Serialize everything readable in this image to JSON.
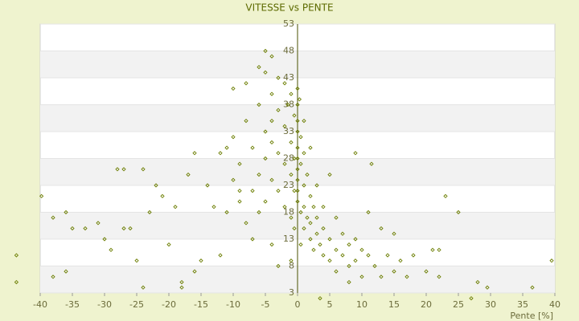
{
  "chart_data": {
    "type": "scatter",
    "title": "VITESSE vs PENTE",
    "x_label": "Pente [%]",
    "color": "#6b7d00",
    "xlim": [
      -40,
      40
    ],
    "xticks": [
      -40,
      -35,
      -30,
      -25,
      -20,
      -15,
      -10,
      -5,
      0,
      5,
      10,
      15,
      20,
      25,
      30,
      35,
      40
    ],
    "ylim": [
      3,
      53
    ],
    "yticks": [
      3,
      8,
      13,
      18,
      23,
      28,
      33,
      38,
      43,
      48,
      53
    ],
    "x": [
      -43.7,
      -43.7,
      -39.8,
      -38,
      -38,
      -36,
      -36,
      -35,
      -33,
      -31,
      -30,
      -29,
      -28,
      -27,
      -27,
      -26,
      -25,
      -24,
      -24,
      -23,
      -22,
      -21,
      -20,
      -19,
      -18,
      -18,
      -17,
      -16,
      -16,
      -15,
      -14,
      -13,
      -12,
      -12,
      -11,
      -11,
      -10,
      -10,
      -10,
      -9,
      -9,
      -9,
      -8,
      -8,
      -8,
      -7,
      -7,
      -7,
      -6,
      -6,
      -6,
      -6,
      -5,
      -5,
      -5,
      -5,
      -5,
      -4,
      -4,
      -4,
      -4,
      -4,
      -4,
      -3,
      -3,
      -3,
      -3,
      -3,
      -2,
      -2,
      -2,
      -2,
      -1.5,
      -1,
      -1,
      -1,
      -1,
      -1,
      -0.5,
      -0.5,
      -0.5,
      -0.5,
      0,
      0,
      0,
      0,
      0,
      0,
      0,
      0,
      0,
      0,
      0.3,
      0.5,
      0.5,
      0.5,
      0.5,
      1,
      1,
      1,
      1,
      1,
      1.5,
      1.5,
      2,
      2,
      2,
      2,
      2.5,
      2.5,
      3,
      3,
      3,
      3.5,
      3.5,
      4,
      4,
      4,
      5,
      5,
      5,
      6,
      6,
      6,
      7,
      7,
      8,
      8,
      8,
      9,
      9,
      9,
      10,
      10,
      11,
      11,
      11.5,
      12,
      13,
      13,
      14,
      15,
      15,
      16,
      17,
      18,
      20,
      21,
      22,
      22,
      23,
      25,
      27,
      28,
      29.5,
      36.5,
      39.5
    ],
    "values": [
      10,
      5,
      21,
      6,
      17,
      7,
      18,
      15,
      15,
      16,
      13,
      11,
      26,
      26,
      15,
      15,
      9,
      4,
      26,
      18,
      23,
      21,
      12,
      19,
      4,
      5,
      25,
      29,
      7,
      9,
      23,
      19,
      29,
      10,
      30,
      18,
      32,
      24,
      41,
      22,
      27,
      20,
      35,
      42,
      16,
      30,
      22,
      13,
      45,
      38,
      25,
      18,
      48,
      44,
      33,
      28,
      20,
      47,
      40,
      35,
      31,
      24,
      12,
      43,
      37,
      29,
      22,
      8,
      42,
      34,
      27,
      19,
      38,
      40,
      31,
      25,
      17,
      9,
      36,
      28,
      22,
      15,
      41,
      38,
      35,
      33,
      30,
      28,
      26,
      24,
      22,
      20,
      39,
      32,
      27,
      18,
      12,
      35,
      29,
      23,
      19,
      15,
      25,
      17,
      30,
      21,
      16,
      13,
      19,
      11,
      23,
      17,
      14,
      12,
      2,
      19,
      15,
      10,
      25,
      13,
      9,
      17,
      11,
      7,
      14,
      10,
      12,
      8,
      5,
      13,
      9,
      29,
      11,
      6,
      10,
      18,
      27,
      8,
      15,
      6,
      10,
      7,
      14,
      9,
      6,
      10,
      7,
      11,
      11,
      6,
      21,
      18,
      2,
      5,
      4,
      4,
      9
    ]
  }
}
